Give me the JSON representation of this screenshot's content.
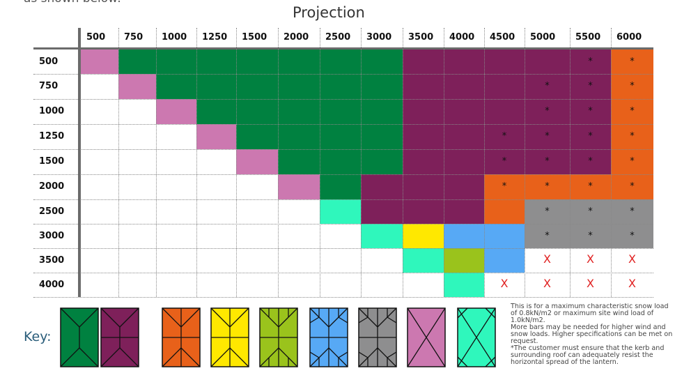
{
  "intro_text": "as shown below:",
  "title": "Projection",
  "columns": [
    "500",
    "750",
    "1000",
    "1250",
    "1500",
    "2000",
    "2500",
    "3000",
    "3500",
    "4000",
    "4500",
    "5000",
    "5500",
    "6000"
  ],
  "rows": [
    "500",
    "750",
    "1000",
    "1250",
    "1500",
    "2000",
    "2500",
    "3000",
    "3500",
    "4000"
  ],
  "colors": {
    "green": "#008140",
    "purple": "#7e205a",
    "orange": "#e8611a",
    "yellow": "#ffe800",
    "olive": "#9ac31c",
    "blue": "#57a9f5",
    "grey": "#8e8e8f",
    "pink": "#cc78b0",
    "teal": "#2ff7bc",
    "white": "#ffffff"
  },
  "cells": [
    [
      "pink",
      "green",
      "green",
      "green",
      "green",
      "green",
      "green",
      "green",
      "purple",
      "purple",
      "purple",
      "purple",
      "purple",
      "orange"
    ],
    [
      "white",
      "pink",
      "green",
      "green",
      "green",
      "green",
      "green",
      "green",
      "purple",
      "purple",
      "purple",
      "purple",
      "purple",
      "orange"
    ],
    [
      "white",
      "white",
      "pink",
      "green",
      "green",
      "green",
      "green",
      "green",
      "purple",
      "purple",
      "purple",
      "purple",
      "purple",
      "orange"
    ],
    [
      "white",
      "white",
      "white",
      "pink",
      "green",
      "green",
      "green",
      "green",
      "purple",
      "purple",
      "purple",
      "purple",
      "purple",
      "orange"
    ],
    [
      "white",
      "white",
      "white",
      "white",
      "pink",
      "green",
      "green",
      "green",
      "purple",
      "purple",
      "purple",
      "purple",
      "purple",
      "orange"
    ],
    [
      "white",
      "white",
      "white",
      "white",
      "white",
      "pink",
      "green",
      "purple",
      "purple",
      "purple",
      "orange",
      "orange",
      "orange",
      "orange"
    ],
    [
      "white",
      "white",
      "white",
      "white",
      "white",
      "white",
      "teal",
      "purple",
      "purple",
      "purple",
      "orange",
      "grey",
      "grey",
      "grey"
    ],
    [
      "white",
      "white",
      "white",
      "white",
      "white",
      "white",
      "white",
      "teal",
      "yellow",
      "blue",
      "blue",
      "grey",
      "grey",
      "grey"
    ],
    [
      "white",
      "white",
      "white",
      "white",
      "white",
      "white",
      "white",
      "white",
      "teal",
      "olive",
      "blue",
      "white",
      "white",
      "white"
    ],
    [
      "white",
      "white",
      "white",
      "white",
      "white",
      "white",
      "white",
      "white",
      "white",
      "teal",
      "white",
      "white",
      "white",
      "white"
    ]
  ],
  "marks": [
    [
      "",
      "",
      "",
      "",
      "",
      "",
      "",
      "",
      "",
      "",
      "",
      "",
      "*",
      "*"
    ],
    [
      "",
      "",
      "",
      "",
      "",
      "",
      "",
      "",
      "",
      "",
      "",
      "*",
      "*",
      "*"
    ],
    [
      "",
      "",
      "",
      "",
      "",
      "",
      "",
      "",
      "",
      "",
      "",
      "*",
      "*",
      "*"
    ],
    [
      "",
      "",
      "",
      "",
      "",
      "",
      "",
      "",
      "",
      "",
      "*",
      "*",
      "*",
      "*"
    ],
    [
      "",
      "",
      "",
      "",
      "",
      "",
      "",
      "",
      "",
      "",
      "*",
      "*",
      "*",
      "*"
    ],
    [
      "",
      "",
      "",
      "",
      "",
      "",
      "",
      "",
      "",
      "",
      "*",
      "*",
      "*",
      "*"
    ],
    [
      "",
      "",
      "",
      "",
      "",
      "",
      "",
      "",
      "",
      "",
      "",
      "*",
      "*",
      "*"
    ],
    [
      "",
      "",
      "",
      "",
      "",
      "",
      "",
      "",
      "",
      "",
      "",
      "*",
      "*",
      "*"
    ],
    [
      "",
      "",
      "",
      "",
      "",
      "",
      "",
      "",
      "",
      "",
      "",
      "X",
      "X",
      "X"
    ],
    [
      "",
      "",
      "",
      "",
      "",
      "",
      "",
      "",
      "",
      "",
      "X",
      "X",
      "X",
      "X"
    ]
  ],
  "key": {
    "label": "Key:",
    "items": [
      {
        "color": "green",
        "icon": "lantern-pattern-green-icon",
        "pattern": "a"
      },
      {
        "color": "purple",
        "icon": "lantern-pattern-purple-icon",
        "pattern": "b"
      },
      {
        "color": "orange",
        "icon": "lantern-pattern-orange-icon",
        "pattern": "c"
      },
      {
        "color": "yellow",
        "icon": "lantern-pattern-yellow-icon",
        "pattern": "d"
      },
      {
        "color": "olive",
        "icon": "lantern-pattern-olive-icon",
        "pattern": "e"
      },
      {
        "color": "blue",
        "icon": "lantern-pattern-blue-icon",
        "pattern": "f"
      },
      {
        "color": "grey",
        "icon": "lantern-pattern-grey-icon",
        "pattern": "g"
      },
      {
        "color": "pink",
        "icon": "lantern-pattern-pink-icon",
        "pattern": "x"
      },
      {
        "color": "teal",
        "icon": "lantern-pattern-teal-icon",
        "pattern": "h"
      }
    ]
  },
  "notes": [
    "This is for a maximum characteristic snow load of 0.8kN/m2 or maximum site wind load of 1.0kN/m2.",
    "More bars may be needed for higher wind and snow loads. Higher specifications can be met on request.",
    "*The customer must ensure that the kerb and surrounding roof can adequately resist the horizontal spread of the lantern."
  ]
}
